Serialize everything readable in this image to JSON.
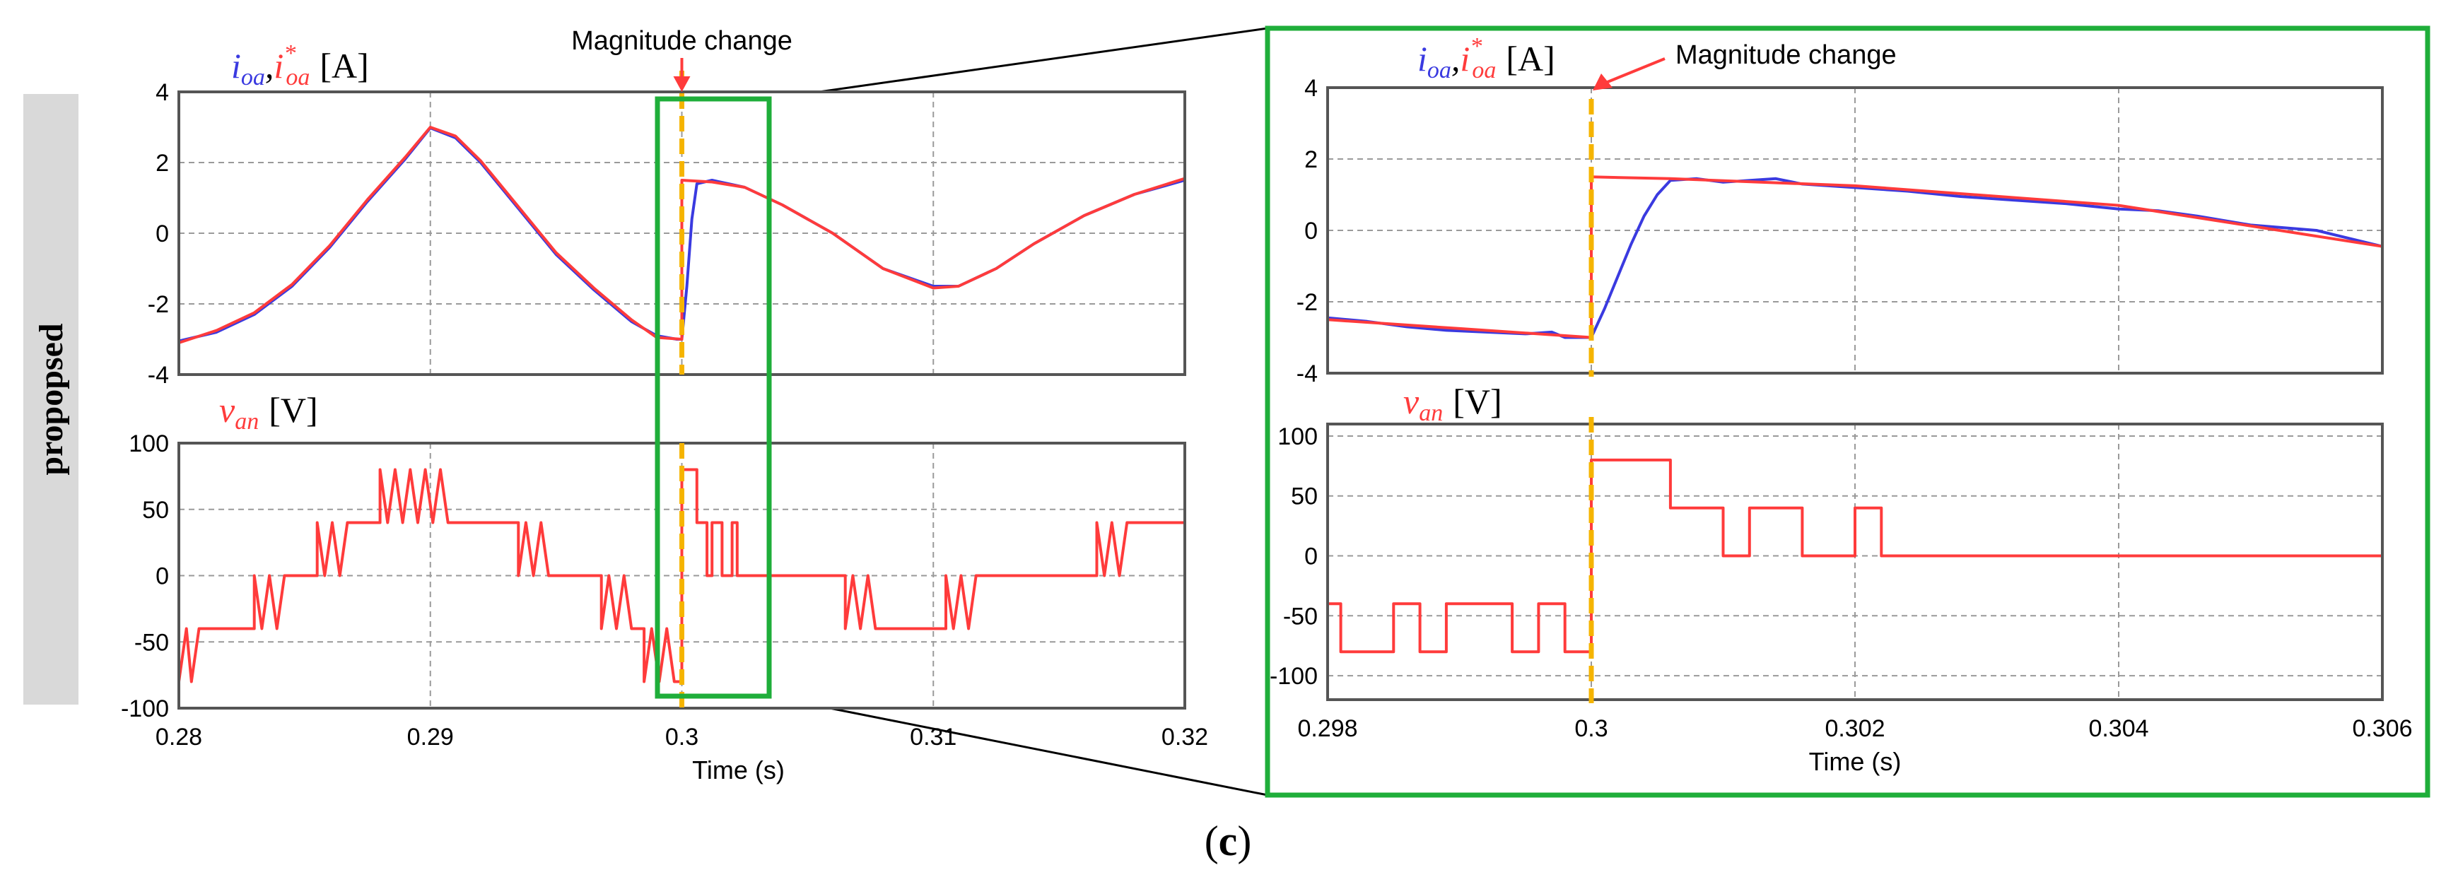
{
  "row_label": "propopsed",
  "caption": {
    "open": "(",
    "letter": "c",
    "close": ")"
  },
  "colors": {
    "measured": "#3a3ae0",
    "reference": "#ff3b3b",
    "marker": "#f5b400",
    "zoom_box": "#1fae3a",
    "frame": "#555555",
    "grid": "#9a9a9a",
    "row_band": "#d9d9d9"
  },
  "chart_data": [
    {
      "id": "left-current",
      "type": "line",
      "panel": "overview",
      "label": {
        "sym1": "i",
        "sub1": "oa",
        "comma": ",",
        "sym2": "i",
        "sup2": "*",
        "sub2": "oa",
        "unit": "[A]"
      },
      "ylim": [
        -4,
        4
      ],
      "xlim": [
        0.28,
        0.32
      ],
      "yticks": [
        "4",
        "2",
        "0",
        "-2",
        "-4"
      ],
      "annotation": {
        "text": "Magnitude change",
        "x": 0.3
      },
      "series": [
        {
          "name": "i_oa (measured)",
          "color": "#3a3ae0",
          "points": [
            [
              0.28,
              -3.05
            ],
            [
              0.2815,
              -2.8
            ],
            [
              0.283,
              -2.3
            ],
            [
              0.2845,
              -1.5
            ],
            [
              0.286,
              -0.4
            ],
            [
              0.2875,
              0.9
            ],
            [
              0.289,
              2.1
            ],
            [
              0.29,
              2.98
            ],
            [
              0.291,
              2.7
            ],
            [
              0.292,
              2.0
            ],
            [
              0.2935,
              0.7
            ],
            [
              0.295,
              -0.6
            ],
            [
              0.2965,
              -1.6
            ],
            [
              0.298,
              -2.5
            ],
            [
              0.299,
              -2.9
            ],
            [
              0.2998,
              -3.0
            ],
            [
              0.3,
              -3.0
            ],
            [
              0.3002,
              -1.5
            ],
            [
              0.3004,
              0.4
            ],
            [
              0.3006,
              1.4
            ],
            [
              0.3012,
              1.5
            ],
            [
              0.3025,
              1.3
            ],
            [
              0.304,
              0.8
            ],
            [
              0.306,
              0.0
            ],
            [
              0.308,
              -1.0
            ],
            [
              0.31,
              -1.5
            ],
            [
              0.311,
              -1.5
            ],
            [
              0.3125,
              -1.0
            ],
            [
              0.314,
              -0.3
            ],
            [
              0.316,
              0.5
            ],
            [
              0.318,
              1.1
            ],
            [
              0.32,
              1.5
            ]
          ]
        },
        {
          "name": "i*_oa (reference)",
          "color": "#ff3b3b",
          "points": [
            [
              0.28,
              -3.1
            ],
            [
              0.2815,
              -2.75
            ],
            [
              0.283,
              -2.25
            ],
            [
              0.2845,
              -1.45
            ],
            [
              0.286,
              -0.35
            ],
            [
              0.2875,
              0.95
            ],
            [
              0.289,
              2.15
            ],
            [
              0.29,
              3.0
            ],
            [
              0.291,
              2.75
            ],
            [
              0.292,
              2.05
            ],
            [
              0.2935,
              0.75
            ],
            [
              0.295,
              -0.55
            ],
            [
              0.2965,
              -1.55
            ],
            [
              0.298,
              -2.45
            ],
            [
              0.299,
              -2.95
            ],
            [
              0.3,
              -3.0
            ],
            [
              0.3,
              1.5
            ],
            [
              0.3012,
              1.45
            ],
            [
              0.3025,
              1.3
            ],
            [
              0.304,
              0.8
            ],
            [
              0.306,
              0.0
            ],
            [
              0.308,
              -1.0
            ],
            [
              0.31,
              -1.55
            ],
            [
              0.311,
              -1.5
            ],
            [
              0.3125,
              -1.0
            ],
            [
              0.314,
              -0.3
            ],
            [
              0.316,
              0.5
            ],
            [
              0.318,
              1.1
            ],
            [
              0.32,
              1.55
            ]
          ]
        }
      ]
    },
    {
      "id": "left-voltage",
      "type": "line",
      "panel": "overview",
      "label": {
        "sym1": "v",
        "sub1": "an",
        "unit": "[V]"
      },
      "ylim": [
        -100,
        100
      ],
      "xlim": [
        0.28,
        0.32
      ],
      "yticks": [
        "100",
        "50",
        "0",
        "-50",
        "-100"
      ],
      "xticks": [
        "0.28",
        "0.29",
        "0.3",
        "0.31",
        "0.32"
      ],
      "xlabel": "Time (s)",
      "series": [
        {
          "name": "v_an",
          "color": "#ff3b3b",
          "step": true,
          "points": [
            [
              0.28,
              -80
            ],
            [
              0.2803,
              -40
            ],
            [
              0.2805,
              -80
            ],
            [
              0.2808,
              -40
            ],
            [
              0.281,
              -40
            ],
            [
              0.283,
              -40
            ],
            [
              0.283,
              0
            ],
            [
              0.2833,
              -40
            ],
            [
              0.2836,
              0
            ],
            [
              0.2839,
              -40
            ],
            [
              0.2842,
              0
            ],
            [
              0.2855,
              0
            ],
            [
              0.2855,
              40
            ],
            [
              0.2858,
              0
            ],
            [
              0.2861,
              40
            ],
            [
              0.2864,
              0
            ],
            [
              0.2867,
              40
            ],
            [
              0.288,
              40
            ],
            [
              0.288,
              80
            ],
            [
              0.2883,
              40
            ],
            [
              0.2886,
              80
            ],
            [
              0.2889,
              40
            ],
            [
              0.2892,
              80
            ],
            [
              0.2895,
              40
            ],
            [
              0.2898,
              80
            ],
            [
              0.2901,
              40
            ],
            [
              0.2904,
              80
            ],
            [
              0.2907,
              40
            ],
            [
              0.2912,
              40
            ],
            [
              0.2935,
              40
            ],
            [
              0.2935,
              0
            ],
            [
              0.2938,
              40
            ],
            [
              0.2941,
              0
            ],
            [
              0.2944,
              40
            ],
            [
              0.2947,
              0
            ],
            [
              0.2968,
              0
            ],
            [
              0.2968,
              -40
            ],
            [
              0.2971,
              0
            ],
            [
              0.2974,
              -40
            ],
            [
              0.2977,
              0
            ],
            [
              0.298,
              -40
            ],
            [
              0.2985,
              -40
            ],
            [
              0.2985,
              -80
            ],
            [
              0.2988,
              -40
            ],
            [
              0.2991,
              -80
            ],
            [
              0.2994,
              -40
            ],
            [
              0.2997,
              -80
            ],
            [
              0.3,
              -80
            ],
            [
              0.3,
              80
            ],
            [
              0.3006,
              80
            ],
            [
              0.3006,
              40
            ],
            [
              0.301,
              40
            ],
            [
              0.301,
              0
            ],
            [
              0.3012,
              0
            ],
            [
              0.3012,
              40
            ],
            [
              0.3016,
              40
            ],
            [
              0.3016,
              0
            ],
            [
              0.302,
              0
            ],
            [
              0.302,
              40
            ],
            [
              0.3022,
              40
            ],
            [
              0.3022,
              0
            ],
            [
              0.3065,
              0
            ],
            [
              0.3065,
              -40
            ],
            [
              0.3068,
              0
            ],
            [
              0.3071,
              -40
            ],
            [
              0.3074,
              0
            ],
            [
              0.3077,
              -40
            ],
            [
              0.308,
              -40
            ],
            [
              0.3105,
              -40
            ],
            [
              0.3105,
              0
            ],
            [
              0.3108,
              -40
            ],
            [
              0.3111,
              0
            ],
            [
              0.3114,
              -40
            ],
            [
              0.3117,
              0
            ],
            [
              0.312,
              0
            ],
            [
              0.3165,
              0
            ],
            [
              0.3165,
              40
            ],
            [
              0.3168,
              0
            ],
            [
              0.3171,
              40
            ],
            [
              0.3174,
              0
            ],
            [
              0.3177,
              40
            ],
            [
              0.318,
              40
            ],
            [
              0.32,
              40
            ]
          ]
        }
      ]
    },
    {
      "id": "right-current",
      "type": "line",
      "panel": "zoom",
      "label": {
        "sym1": "i",
        "sub1": "oa",
        "comma": ",",
        "sym2": "i",
        "sup2": "*",
        "sub2": "oa",
        "unit": "[A]"
      },
      "ylim": [
        -4,
        4
      ],
      "xlim": [
        0.298,
        0.306
      ],
      "yticks": [
        "4",
        "2",
        "0",
        "-2",
        "-4"
      ],
      "annotation": {
        "text": "Magnitude change",
        "x": 0.3
      },
      "series": [
        {
          "name": "i_oa (measured)",
          "color": "#3a3ae0",
          "points": [
            [
              0.298,
              -2.45
            ],
            [
              0.2983,
              -2.55
            ],
            [
              0.2986,
              -2.7
            ],
            [
              0.2989,
              -2.8
            ],
            [
              0.2992,
              -2.85
            ],
            [
              0.2995,
              -2.9
            ],
            [
              0.2997,
              -2.85
            ],
            [
              0.2998,
              -3.0
            ],
            [
              0.3,
              -3.0
            ],
            [
              0.3001,
              -2.2
            ],
            [
              0.3002,
              -1.3
            ],
            [
              0.3003,
              -0.4
            ],
            [
              0.3004,
              0.4
            ],
            [
              0.3005,
              1.0
            ],
            [
              0.3006,
              1.4
            ],
            [
              0.3008,
              1.45
            ],
            [
              0.301,
              1.35
            ],
            [
              0.3014,
              1.45
            ],
            [
              0.3016,
              1.3
            ],
            [
              0.302,
              1.2
            ],
            [
              0.3024,
              1.1
            ],
            [
              0.3028,
              0.95
            ],
            [
              0.3032,
              0.85
            ],
            [
              0.3036,
              0.75
            ],
            [
              0.304,
              0.6
            ],
            [
              0.3043,
              0.55
            ],
            [
              0.3046,
              0.4
            ],
            [
              0.305,
              0.15
            ],
            [
              0.3055,
              0.0
            ],
            [
              0.306,
              -0.45
            ]
          ]
        },
        {
          "name": "i*_oa (reference)",
          "color": "#ff3b3b",
          "points": [
            [
              0.298,
              -2.5
            ],
            [
              0.299,
              -2.75
            ],
            [
              0.3,
              -3.0
            ],
            [
              0.3,
              1.5
            ],
            [
              0.3006,
              1.45
            ],
            [
              0.302,
              1.25
            ],
            [
              0.304,
              0.7
            ],
            [
              0.306,
              -0.45
            ]
          ]
        }
      ]
    },
    {
      "id": "right-voltage",
      "type": "line",
      "panel": "zoom",
      "label": {
        "sym1": "v",
        "sub1": "an",
        "unit": "[V]"
      },
      "ylim": [
        -120,
        110
      ],
      "xlim": [
        0.298,
        0.306
      ],
      "yticks": [
        "100",
        "50",
        "0",
        "-50",
        "-100"
      ],
      "xticks": [
        "0.298",
        "0.3",
        "0.302",
        "0.304",
        "0.306"
      ],
      "xlabel": "Time (s)",
      "series": [
        {
          "name": "v_an",
          "color": "#ff3b3b",
          "step": true,
          "points": [
            [
              0.298,
              -40
            ],
            [
              0.2981,
              -40
            ],
            [
              0.2981,
              -80
            ],
            [
              0.2985,
              -80
            ],
            [
              0.2985,
              -40
            ],
            [
              0.2987,
              -40
            ],
            [
              0.2987,
              -80
            ],
            [
              0.2989,
              -80
            ],
            [
              0.2989,
              -40
            ],
            [
              0.2994,
              -40
            ],
            [
              0.2994,
              -80
            ],
            [
              0.2996,
              -80
            ],
            [
              0.2996,
              -40
            ],
            [
              0.2998,
              -40
            ],
            [
              0.2998,
              -80
            ],
            [
              0.3,
              -80
            ],
            [
              0.3,
              80
            ],
            [
              0.3006,
              80
            ],
            [
              0.3006,
              40
            ],
            [
              0.301,
              40
            ],
            [
              0.301,
              0
            ],
            [
              0.3012,
              0
            ],
            [
              0.3012,
              40
            ],
            [
              0.3016,
              40
            ],
            [
              0.3016,
              0
            ],
            [
              0.302,
              0
            ],
            [
              0.302,
              40
            ],
            [
              0.3022,
              40
            ],
            [
              0.3022,
              0
            ],
            [
              0.306,
              0
            ]
          ]
        }
      ]
    }
  ]
}
